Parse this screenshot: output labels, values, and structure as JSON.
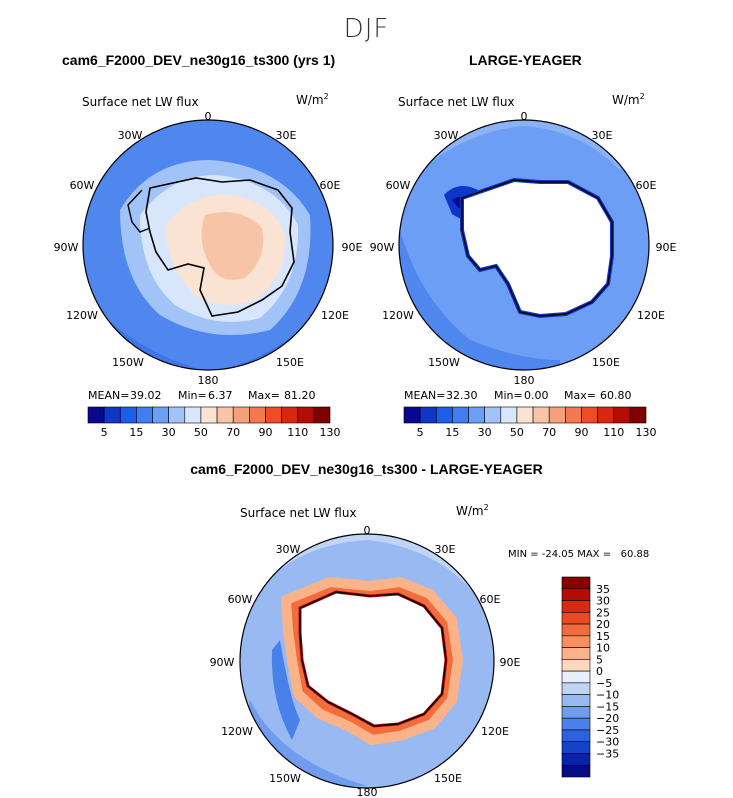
{
  "season": "DJF",
  "variable_label": "Surface net LW flux",
  "units": "W/m",
  "units_exp": "2",
  "longitude_labels": [
    "0",
    "30E",
    "60E",
    "90E",
    "120E",
    "150E",
    "180",
    "150W",
    "120W",
    "90W",
    "60W",
    "30W"
  ],
  "panels": [
    {
      "title": "cam6_F2000_DEV_ne30g16_ts300 (yrs 1)",
      "stats": {
        "mean_label": "MEAN=",
        "mean": "39.02",
        "min_label": "Min=",
        "min": "6.37",
        "max_label": "Max=",
        "max": "81.20"
      }
    },
    {
      "title": "LARGE-YEAGER",
      "stats": {
        "mean_label": "MEAN=",
        "mean": "32.30",
        "min_label": "Min=",
        "min": "0.00",
        "max_label": "Max=",
        "max": "60.80"
      }
    },
    {
      "title": "cam6_F2000_DEV_ne30g16_ts300 - LARGE-YEAGER",
      "stats_text": "MIN = -24.05 MAX =   60.88"
    }
  ],
  "chart_data": [
    {
      "type": "heatmap",
      "title": "cam6_F2000_DEV_ne30g16_ts300 (yrs 1)",
      "subtitle": "Surface net LW flux (W/m2), DJF",
      "colorbar_ticks": [
        "5",
        "15",
        "30",
        "50",
        "70",
        "90",
        "110",
        "130"
      ],
      "colorbar_colors": [
        "#08088f",
        "#1036c8",
        "#1c5ee8",
        "#3f7ef0",
        "#6c9ef5",
        "#a2c3f8",
        "#d7e6fb",
        "#fbe3d3",
        "#f8c4a8",
        "#f5a07c",
        "#f2784e",
        "#ec4d27",
        "#d8270f",
        "#b30d06",
        "#7e0000"
      ],
      "levels": [
        5,
        10,
        15,
        20,
        30,
        40,
        50,
        60,
        70,
        80,
        90,
        100,
        110,
        120,
        130
      ],
      "mean": 39.02,
      "min": 6.37,
      "max": 81.2
    },
    {
      "type": "heatmap",
      "title": "LARGE-YEAGER",
      "subtitle": "Surface net LW flux (W/m2), DJF",
      "colorbar_ticks": [
        "5",
        "15",
        "30",
        "50",
        "70",
        "90",
        "110",
        "130"
      ],
      "colorbar_colors": [
        "#08088f",
        "#1036c8",
        "#1c5ee8",
        "#3f7ef0",
        "#6c9ef5",
        "#a2c3f8",
        "#d7e6fb",
        "#fbe3d3",
        "#f8c4a8",
        "#f5a07c",
        "#f2784e",
        "#ec4d27",
        "#d8270f",
        "#b30d06",
        "#7e0000"
      ],
      "levels": [
        5,
        10,
        15,
        20,
        30,
        40,
        50,
        60,
        70,
        80,
        90,
        100,
        110,
        120,
        130
      ],
      "mean": 32.3,
      "min": 0.0,
      "max": 60.8
    },
    {
      "type": "heatmap",
      "title": "cam6_F2000_DEV_ne30g16_ts300 - LARGE-YEAGER",
      "subtitle": "Surface net LW flux (W/m2), DJF difference",
      "colorbar_ticks": [
        "35",
        "30",
        "25",
        "20",
        "15",
        "10",
        "5",
        "0",
        "−5",
        "−10",
        "−15",
        "−20",
        "−25",
        "−30",
        "−35"
      ],
      "colorbar_colors": [
        "#8a0000",
        "#b50b04",
        "#d42a10",
        "#ea4a22",
        "#f36c3c",
        "#f7905c",
        "#fab388",
        "#fcd8c0",
        "#e8eefa",
        "#c0d4f6",
        "#98b9f2",
        "#6f9cee",
        "#4a80ea",
        "#2c62e0",
        "#1442c8",
        "#0a22a8",
        "#050c85"
      ],
      "min": -24.05,
      "max": 60.88
    }
  ]
}
